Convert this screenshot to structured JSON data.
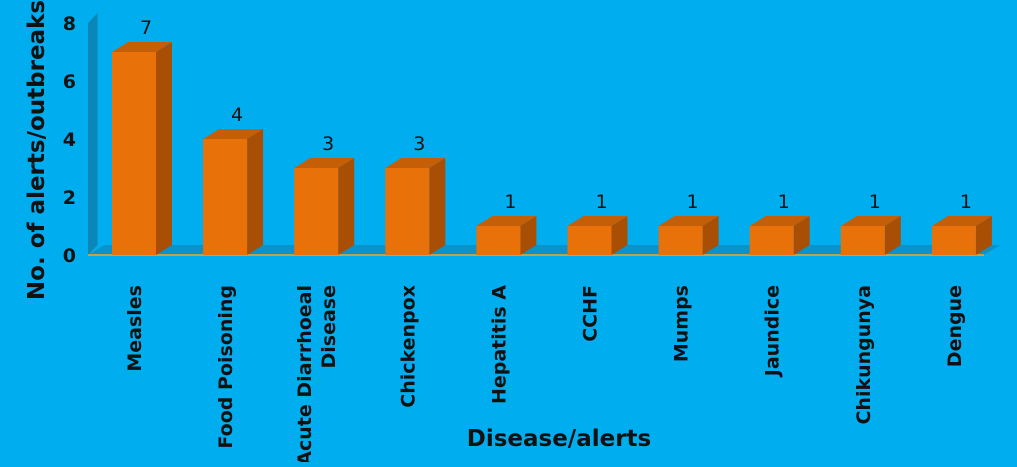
{
  "chart_data": {
    "type": "bar",
    "title": "",
    "xlabel": "Disease/alerts",
    "ylabel": "No. of alerts/outbreaks",
    "ylim": [
      0,
      8
    ],
    "yticks": [
      "0",
      "2",
      "4",
      "6",
      "8"
    ],
    "categories": [
      "Measles",
      "Food Poisoning",
      "Acute Diarrhoeal Disease",
      "Chickenpox",
      "Hepatitis A",
      "CCHF",
      "Mumps",
      "Jaundice",
      "Chikungunya",
      "Dengue"
    ],
    "category_lines": [
      [
        "Measles"
      ],
      [
        "Food Poisoning"
      ],
      [
        "Acute Diarrhoeal",
        "Disease"
      ],
      [
        "Chickenpox"
      ],
      [
        "Hepatitis A"
      ],
      [
        "CCHF"
      ],
      [
        "Mumps"
      ],
      [
        "Jaundice"
      ],
      [
        "Chikungunya"
      ],
      [
        "Dengue"
      ]
    ],
    "values": [
      7,
      4,
      3,
      3,
      1,
      1,
      1,
      1,
      1,
      1
    ],
    "data_labels": [
      "7",
      "4",
      "3",
      "3",
      "1",
      "1",
      "1",
      "1",
      "1",
      "1"
    ],
    "legend": "none",
    "grid": false,
    "colors": {
      "background": "#00AEEF",
      "bar_front": "#E8710A",
      "bar_side": "#A84E05",
      "bar_top": "#C45E07",
      "back_wall": "#0A86B8",
      "floor": "#0B93C9",
      "floor_edge": "#F5A623"
    }
  }
}
